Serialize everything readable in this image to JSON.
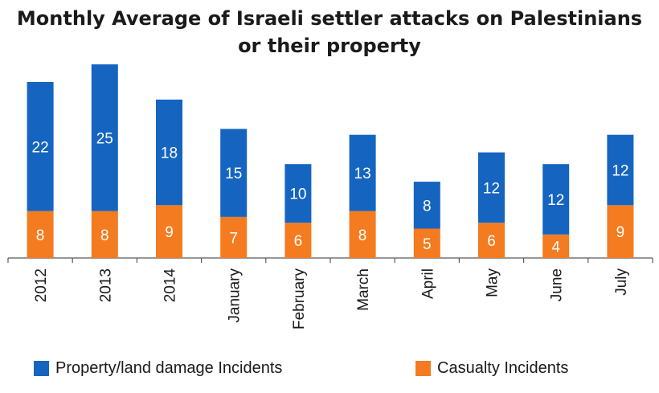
{
  "colors": {
    "property": "#1565c0",
    "casualty": "#f47b20",
    "axis": "#595959",
    "value_text": "#ffffff"
  },
  "chart_data": {
    "type": "bar",
    "stacked": true,
    "title_lines": [
      "Monthly Average of Israeli settler attacks on Palestinians",
      "or their property"
    ],
    "categories": [
      "2012",
      "2013",
      "2014",
      "January",
      "February",
      "March",
      "April",
      "May",
      "June",
      "July"
    ],
    "series": [
      {
        "name": "Casualty Incidents",
        "values": [
          8,
          8,
          9,
          7,
          6,
          8,
          5,
          6,
          4,
          9
        ]
      },
      {
        "name": "Property/land damage Incidents",
        "values": [
          22,
          25,
          18,
          15,
          10,
          13,
          8,
          12,
          12,
          12
        ]
      }
    ],
    "legend_position": "bottom",
    "grid": false,
    "ylim": [
      0,
      35
    ]
  }
}
